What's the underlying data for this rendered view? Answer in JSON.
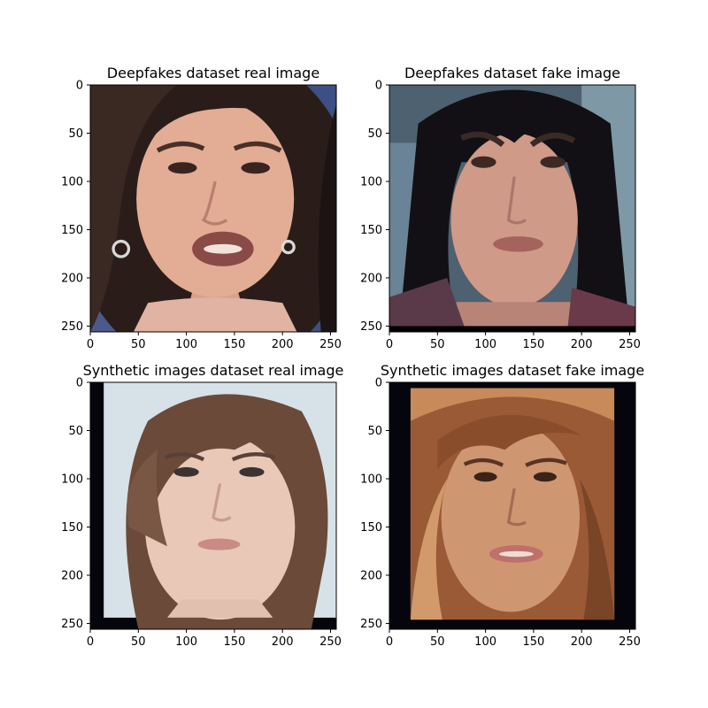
{
  "chart_data": {
    "type": "image-grid",
    "layout": {
      "rows": 2,
      "cols": 2
    },
    "colors": {
      "axis": "#000000",
      "frame_dark": "#05060d",
      "light_background": "#d6e2e8"
    },
    "panels": [
      {
        "title": "Deepfakes dataset real image",
        "image_depiction": "face-photo-dark-hair-speaking",
        "image_size": [
          256,
          256
        ],
        "xlim": [
          0,
          256
        ],
        "ylim": [
          256,
          0
        ],
        "x_ticks": [
          0,
          50,
          100,
          150,
          200,
          250
        ],
        "y_ticks": [
          0,
          50,
          100,
          150,
          200,
          250
        ],
        "palette": {
          "background": "#4a5a8a",
          "skin": "#e2ac95",
          "hair": "#2a1d19",
          "lips": "#8a4a45"
        }
      },
      {
        "title": "Deepfakes dataset fake image",
        "image_depiction": "face-photo-manipulated-long-black-hair",
        "image_size": [
          256,
          256
        ],
        "xlim": [
          0,
          256
        ],
        "ylim": [
          256,
          0
        ],
        "x_ticks": [
          0,
          50,
          100,
          150,
          200,
          250
        ],
        "y_ticks": [
          0,
          50,
          100,
          150,
          200,
          250
        ],
        "palette": {
          "background": "#4d6170",
          "skin": "#cf9a88",
          "hair": "#121014",
          "lips": "#a4635d"
        }
      },
      {
        "title": "Synthetic images dataset real image",
        "image_depiction": "face-photo-light-background-side-bangs",
        "image_size": [
          256,
          256
        ],
        "xlim": [
          0,
          256
        ],
        "ylim": [
          256,
          0
        ],
        "x_ticks": [
          0,
          50,
          100,
          150,
          200,
          250
        ],
        "y_ticks": [
          0,
          50,
          100,
          150,
          200,
          250
        ],
        "palette": {
          "background": "#d6e2e8",
          "skin": "#e9c8b8",
          "hair": "#6b4a3a",
          "lips": "#c98b86",
          "frame": "#05060d"
        }
      },
      {
        "title": "Synthetic images dataset fake image",
        "image_depiction": "face-photo-generated-auburn-hair",
        "image_size": [
          256,
          256
        ],
        "xlim": [
          0,
          256
        ],
        "ylim": [
          256,
          0
        ],
        "x_ticks": [
          0,
          50,
          100,
          150,
          200,
          250
        ],
        "y_ticks": [
          0,
          50,
          100,
          150,
          200,
          250
        ],
        "palette": {
          "background": "#05060d",
          "skin": "#cf9672",
          "hair": "#9a5a35",
          "lips": "#c0706a"
        }
      }
    ]
  }
}
